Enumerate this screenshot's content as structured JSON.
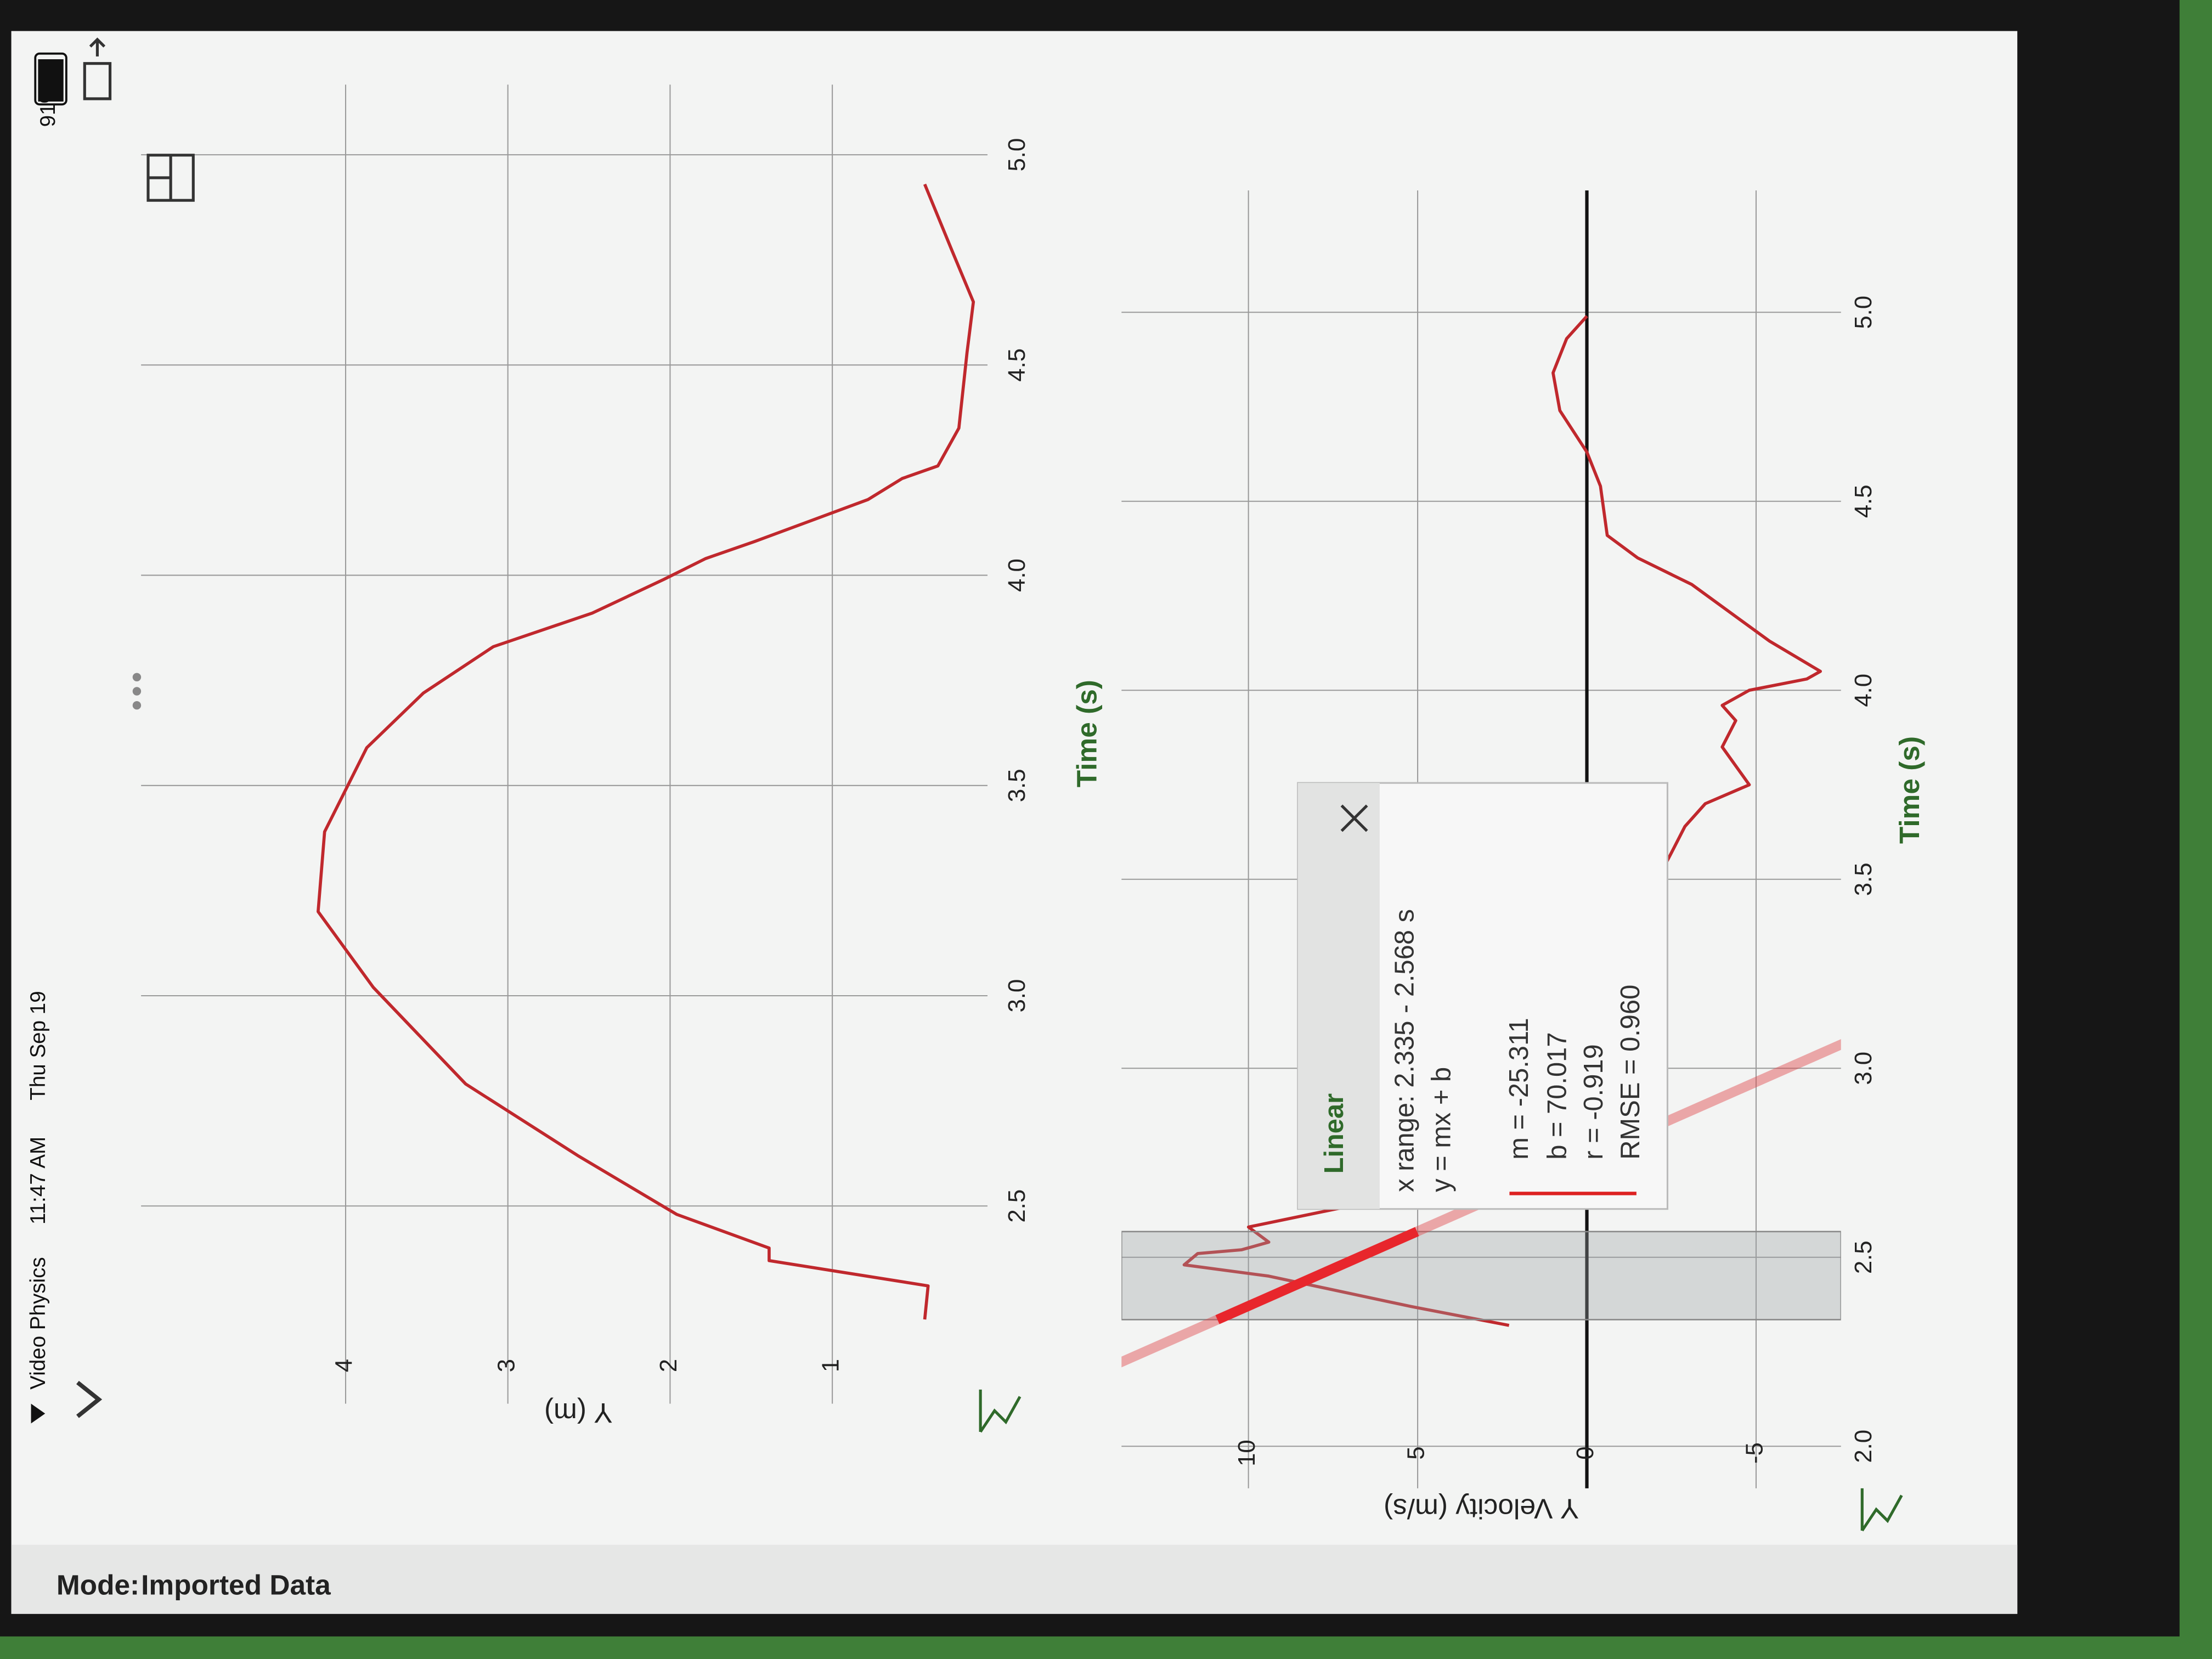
{
  "status_bar": {
    "carrier": "Video Physics",
    "time": "11:47 AM",
    "date": "Thu Sep 19",
    "battery": "91%"
  },
  "mode": {
    "label": "Mode:",
    "value": "Imported Data"
  },
  "chart_data": [
    {
      "type": "line",
      "y_label": "Y (m)",
      "x_label": "Time (s)",
      "color": "#c0282d",
      "grid": true,
      "xlim": [
        2.05,
        5.15
      ],
      "ylim": [
        0.1,
        5.2
      ],
      "xticks": [
        2.5,
        {
          "value": 3,
          "label": "3.0"
        },
        3.5,
        {
          "value": 4,
          "label": "4.0"
        },
        4.5,
        {
          "value": 5,
          "label": "5.0"
        }
      ],
      "yticks": [
        1,
        2,
        3,
        4
      ],
      "x": [
        2.23,
        2.31,
        2.37,
        2.4,
        2.48,
        2.62,
        2.79,
        3.02,
        3.2,
        3.39,
        3.59,
        3.72,
        3.83,
        3.91,
        3.99,
        4.04,
        4.08,
        4.13,
        4.18,
        4.23,
        4.26,
        4.35,
        4.53,
        4.65,
        4.77,
        4.93
      ],
      "values": [
        0.43,
        0.41,
        1.39,
        1.39,
        1.96,
        2.57,
        3.26,
        3.83,
        4.17,
        4.13,
        3.87,
        3.52,
        3.09,
        2.48,
        2.04,
        1.78,
        1.48,
        1.13,
        0.78,
        0.57,
        0.35,
        0.22,
        0.17,
        0.13,
        0.26,
        0.43
      ]
    },
    {
      "type": "line",
      "y_label": "Y Velocity (m/s)",
      "x_label": "Time (s)",
      "color": "#c0282d",
      "grid": true,
      "xlim": [
        1.9,
        5.3
      ],
      "ylim": [
        -7.3,
        13.5
      ],
      "xticks": [
        {
          "value": 2,
          "label": "2.0"
        },
        2.5,
        {
          "value": 3,
          "label": "3.0"
        },
        3.5,
        {
          "value": 4,
          "label": "4.0"
        },
        4.5,
        {
          "value": 5,
          "label": "5.0"
        }
      ],
      "yticks": [
        -5,
        0,
        5,
        10
      ],
      "x": [
        2.32,
        2.37,
        2.45,
        2.48,
        2.51,
        2.52,
        2.54,
        2.58,
        2.63,
        2.69,
        2.91,
        3.21,
        3.4,
        3.57,
        3.64,
        3.7,
        3.75,
        3.85,
        3.92,
        3.96,
        4.0,
        4.03,
        4.05,
        4.13,
        4.28,
        4.35,
        4.41,
        4.54,
        4.63,
        4.74,
        4.84,
        4.93,
        4.99
      ],
      "values": [
        2.3,
        5.2,
        9.4,
        11.9,
        11.5,
        10.2,
        9.4,
        10.0,
        7.3,
        5.6,
        3.1,
        0.2,
        -1.5,
        -2.5,
        -2.9,
        -3.5,
        -4.8,
        -4.0,
        -4.4,
        -4.0,
        -4.8,
        -6.5,
        -6.9,
        -5.4,
        -3.1,
        -1.5,
        -0.6,
        -0.4,
        0.0,
        0.8,
        1.0,
        0.6,
        0.0
      ],
      "fit": {
        "title": "Linear",
        "x_range": {
          "start": 2.335,
          "end": 2.568,
          "label": "x range: 2.335 - 2.568 s"
        },
        "equation": "y = mx + b",
        "m": {
          "value": -25.311,
          "label": "m = -25.311"
        },
        "b": {
          "value": 70.017,
          "label": "b = 70.017"
        },
        "r": "r = -0.919",
        "rmse": "RMSE = 0.960"
      }
    }
  ]
}
